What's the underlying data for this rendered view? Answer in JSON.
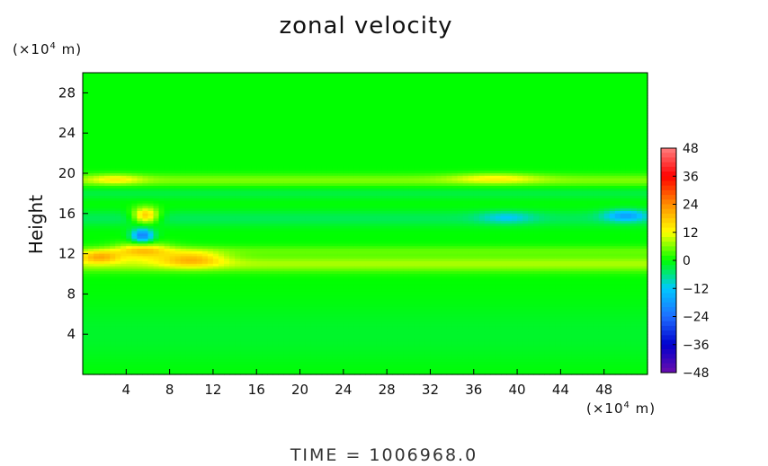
{
  "chart_data": {
    "type": "heatmap",
    "title": "zonal velocity",
    "ylabel": "Height",
    "xlabel": "",
    "x_unit_prefix": "(×10",
    "x_unit_exp": "4",
    "x_unit_suffix": " m)",
    "y_unit_prefix": "(×10",
    "y_unit_exp": "4",
    "y_unit_suffix": " m)",
    "xlim": [
      0,
      52
    ],
    "ylim": [
      0,
      30
    ],
    "x_ticks": [
      4,
      8,
      12,
      16,
      20,
      24,
      28,
      32,
      36,
      40,
      44,
      48
    ],
    "y_ticks": [
      4,
      8,
      12,
      16,
      20,
      24,
      28
    ],
    "colorbar": {
      "min": -48,
      "max": 48,
      "labels": [
        48,
        36,
        24,
        12,
        0,
        -12,
        -24,
        -36,
        -48
      ],
      "colors": [
        "#6a0dad",
        "#0000cd",
        "#1e6fff",
        "#00c8ff",
        "#00ff00",
        "#ffff00",
        "#ff8c00",
        "#ff0000",
        "#ff7f7f"
      ]
    },
    "background_value": 0,
    "features": [
      {
        "type": "band",
        "x0": 0,
        "x1": 52,
        "y_center": 19.3,
        "y_halfwidth": 0.6,
        "value": 6
      },
      {
        "type": "band",
        "x0": 0,
        "x1": 52,
        "y_center": 11.0,
        "y_halfwidth": 0.8,
        "value": 8
      },
      {
        "type": "band",
        "x0": 0,
        "x1": 52,
        "y_center": 12.3,
        "y_halfwidth": 0.5,
        "value": 4
      },
      {
        "type": "band",
        "x0": 0,
        "x1": 52,
        "y_center": 15.5,
        "y_halfwidth": 0.8,
        "value": -4
      },
      {
        "type": "band",
        "x0": 0,
        "x1": 52,
        "y_center": 18.0,
        "y_halfwidth": 0.6,
        "value": -3
      },
      {
        "type": "band",
        "x0": 0,
        "x1": 52,
        "y_center": 4.0,
        "y_halfwidth": 3.0,
        "value": -2
      },
      {
        "type": "blob",
        "x": 5.5,
        "y": 13.8,
        "rx": 1.0,
        "ry": 0.7,
        "value": -22
      },
      {
        "type": "blob",
        "x": 5.8,
        "y": 15.8,
        "rx": 1.2,
        "ry": 0.8,
        "value": 20
      },
      {
        "type": "blob",
        "x": 5.5,
        "y": 12.3,
        "rx": 2.5,
        "ry": 0.8,
        "value": 14
      },
      {
        "type": "blob",
        "x": 1.5,
        "y": 11.7,
        "rx": 2.0,
        "ry": 0.6,
        "value": 16
      },
      {
        "type": "blob",
        "x": 10,
        "y": 11.5,
        "rx": 3.0,
        "ry": 0.8,
        "value": 14
      },
      {
        "type": "blob",
        "x": 50,
        "y": 15.8,
        "rx": 2.0,
        "ry": 0.6,
        "value": -14
      },
      {
        "type": "blob",
        "x": 39,
        "y": 15.6,
        "rx": 2.5,
        "ry": 0.6,
        "value": -8
      },
      {
        "type": "blob",
        "x": 3,
        "y": 19.4,
        "rx": 2.5,
        "ry": 0.5,
        "value": 8
      },
      {
        "type": "blob",
        "x": 38,
        "y": 19.5,
        "rx": 4.0,
        "ry": 0.5,
        "value": 8
      }
    ]
  },
  "time_label": "TIME = 1006968.0"
}
